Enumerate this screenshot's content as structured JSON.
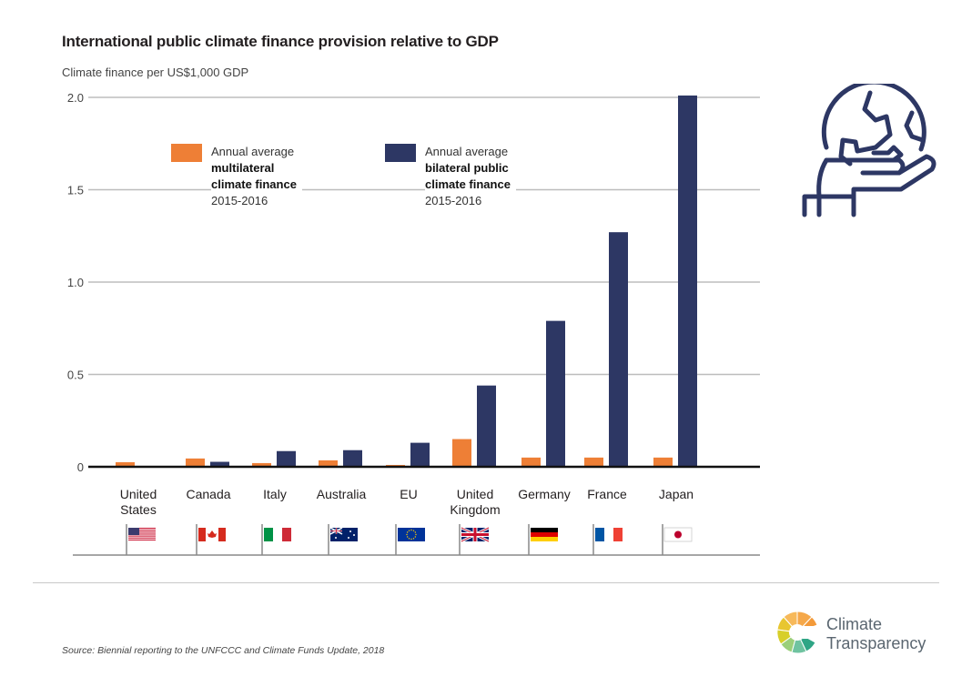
{
  "header": {
    "title": "International public climate finance provision relative to GDP",
    "y_axis_label": "Climate finance per US$1,000 GDP"
  },
  "legend": [
    {
      "line1": "Annual average",
      "bold1": "multilateral",
      "bold2": "climate finance",
      "years": "2015-2016",
      "color": "#ee7f36"
    },
    {
      "line1": "Annual average",
      "bold1": "bilateral public",
      "bold2": "climate finance",
      "years": "2015-2016",
      "color": "#2d3764"
    }
  ],
  "chart_data": {
    "type": "bar",
    "title": "International public climate finance provision relative to GDP",
    "xlabel": "",
    "ylabel": "Climate finance per US$1,000 GDP",
    "ylim": [
      0,
      2.0
    ],
    "yticks": [
      0,
      0.5,
      1.0,
      1.5,
      2.0
    ],
    "ytick_labels": [
      "0",
      "0.5",
      "1.0",
      "1.5",
      "2.0"
    ],
    "grid": true,
    "legend_position": "top-left",
    "categories": [
      [
        "United",
        "States"
      ],
      [
        "Canada"
      ],
      [
        "Italy"
      ],
      [
        "Australia"
      ],
      [
        "EU"
      ],
      [
        "United",
        "Kingdom"
      ],
      [
        "Germany"
      ],
      [
        "France"
      ],
      [
        "Japan"
      ]
    ],
    "series": [
      {
        "name": "Annual average multilateral climate finance 2015-2016",
        "color": "#ee7f36",
        "values": [
          0.025,
          0.045,
          0.02,
          0.035,
          0.01,
          0.15,
          0.05,
          0.05,
          0.05
        ]
      },
      {
        "name": "Annual average bilateral public climate finance 2015-2016",
        "color": "#2d3764",
        "values": [
          0,
          0.027,
          0.085,
          0.09,
          0.13,
          0.44,
          0.79,
          1.27,
          2.01
        ]
      }
    ],
    "flags": [
      "us-flag",
      "canada-flag",
      "italy-flag",
      "australia-flag",
      "eu-flag",
      "uk-flag",
      "germany-flag",
      "france-flag",
      "japan-flag"
    ]
  },
  "footer": {
    "source": "Source: Biennial reporting to the UNFCCC and Climate Funds Update, 2018",
    "brand_line1": "Climate",
    "brand_line2": "Transparency"
  }
}
